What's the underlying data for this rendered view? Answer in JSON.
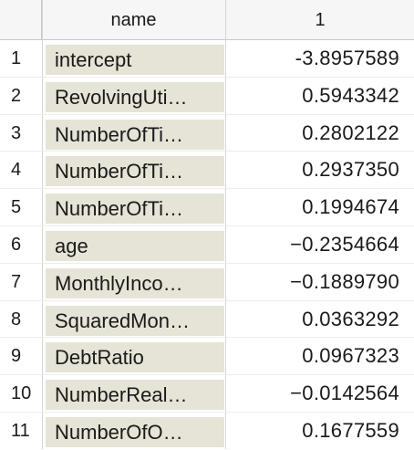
{
  "header": {
    "index_label": "",
    "name_label": "name",
    "value_label": "1"
  },
  "rows": [
    {
      "index": "1",
      "name": "intercept",
      "value": "-3.8957589"
    },
    {
      "index": "2",
      "name": "RevolvingUti…",
      "value": "0.5943342"
    },
    {
      "index": "3",
      "name": "NumberOfTi…",
      "value": "0.2802122"
    },
    {
      "index": "4",
      "name": "NumberOfTi…",
      "value": "0.2937350"
    },
    {
      "index": "5",
      "name": "NumberOfTi…",
      "value": "0.1994674"
    },
    {
      "index": "6",
      "name": "age",
      "value": "−0.2354664"
    },
    {
      "index": "7",
      "name": "MonthlyInco…",
      "value": "−0.1889790"
    },
    {
      "index": "8",
      "name": "SquaredMon…",
      "value": "0.0363292"
    },
    {
      "index": "9",
      "name": "DebtRatio",
      "value": "0.0967323"
    },
    {
      "index": "10",
      "name": "NumberReal…",
      "value": "−0.0142564"
    },
    {
      "index": "11",
      "name": "NumberOfO…",
      "value": "0.1677559"
    }
  ]
}
